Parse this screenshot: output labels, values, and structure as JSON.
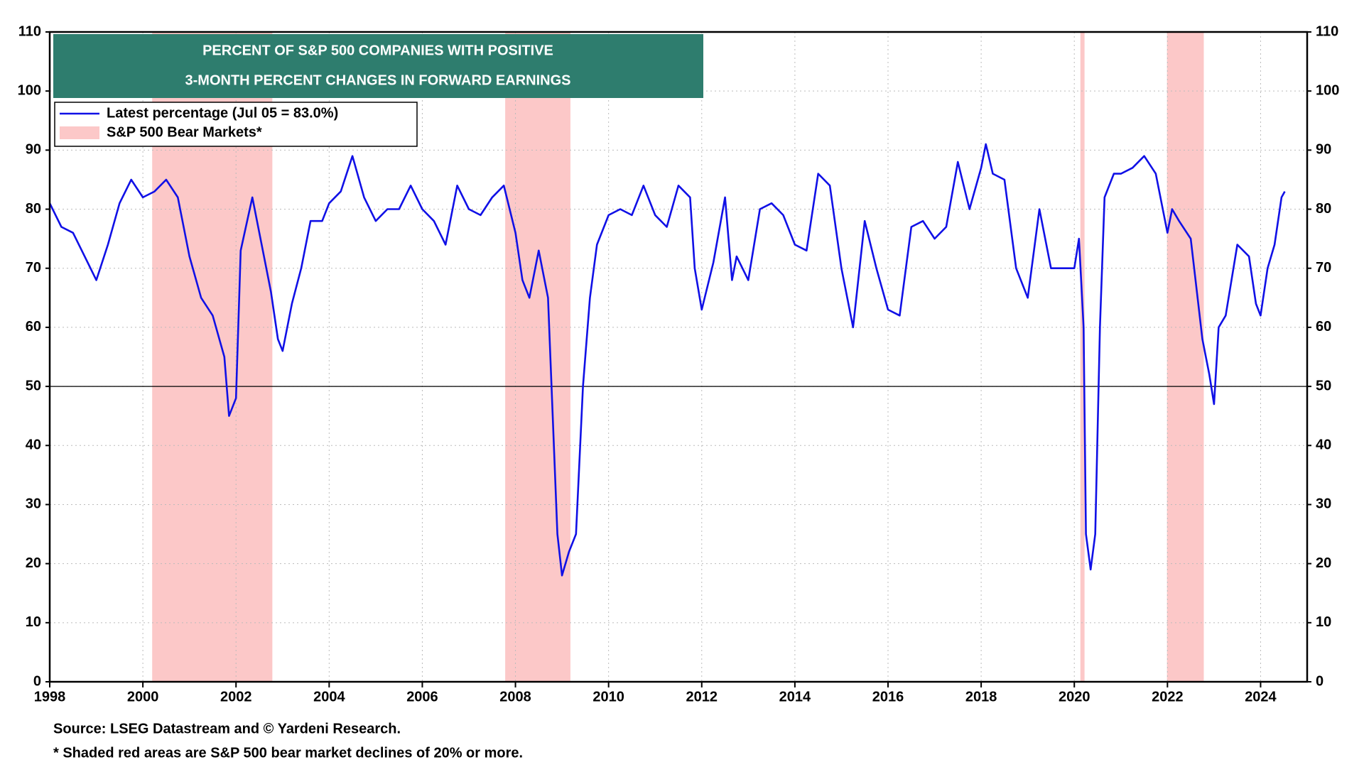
{
  "chart_data": {
    "type": "line",
    "title": [
      "PERCENT OF S&P 500 COMPANIES WITH POSITIVE",
      "3-MONTH PERCENT CHANGES IN FORWARD EARNINGS"
    ],
    "notes": [
      "Source: LSEG Datastream and © Yardeni Research.",
      "* Shaded red areas are S&P 500 bear market declines of 20% or more."
    ],
    "x": [
      1998.0,
      1998.25,
      1998.5,
      1998.75,
      1999.0,
      1999.25,
      1999.5,
      1999.75,
      2000.0,
      2000.25,
      2000.5,
      2000.75,
      2001.0,
      2001.25,
      2001.5,
      2001.75,
      2001.85,
      2002.0,
      2002.1,
      2002.35,
      2002.6,
      2002.75,
      2002.9,
      2003.0,
      2003.2,
      2003.4,
      2003.6,
      2003.85,
      2004.0,
      2004.25,
      2004.5,
      2004.75,
      2005.0,
      2005.25,
      2005.5,
      2005.75,
      2006.0,
      2006.25,
      2006.5,
      2006.75,
      2007.0,
      2007.25,
      2007.5,
      2007.75,
      2008.0,
      2008.15,
      2008.3,
      2008.5,
      2008.7,
      2008.8,
      2008.9,
      2009.0,
      2009.15,
      2009.3,
      2009.45,
      2009.6,
      2009.75,
      2010.0,
      2010.25,
      2010.5,
      2010.75,
      2011.0,
      2011.25,
      2011.5,
      2011.75,
      2011.85,
      2012.0,
      2012.25,
      2012.5,
      2012.65,
      2012.75,
      2013.0,
      2013.25,
      2013.5,
      2013.75,
      2014.0,
      2014.25,
      2014.5,
      2014.75,
      2015.0,
      2015.25,
      2015.5,
      2015.75,
      2016.0,
      2016.25,
      2016.5,
      2016.75,
      2017.0,
      2017.25,
      2017.5,
      2017.75,
      2018.0,
      2018.1,
      2018.25,
      2018.5,
      2018.75,
      2019.0,
      2019.25,
      2019.5,
      2019.75,
      2020.0,
      2020.1,
      2020.2,
      2020.25,
      2020.35,
      2020.45,
      2020.55,
      2020.65,
      2020.85,
      2021.0,
      2021.25,
      2021.5,
      2021.75,
      2022.0,
      2022.1,
      2022.25,
      2022.5,
      2022.75,
      2022.9,
      2023.0,
      2023.1,
      2023.25,
      2023.5,
      2023.75,
      2023.9,
      2024.0,
      2024.15,
      2024.3,
      2024.45,
      2024.52
    ],
    "series": [
      {
        "name": "Latest percentage (Jul 05 = 83.0%)",
        "color": "#1010e6",
        "values": [
          81,
          77,
          76,
          72,
          68,
          74,
          81,
          85,
          82,
          83,
          85,
          82,
          72,
          65,
          62,
          55,
          45,
          48,
          73,
          82,
          72,
          66,
          58,
          56,
          64,
          70,
          78,
          78,
          81,
          83,
          89,
          82,
          78,
          80,
          80,
          84,
          80,
          78,
          74,
          84,
          80,
          79,
          82,
          84,
          76,
          68,
          65,
          73,
          65,
          45,
          25,
          18,
          22,
          25,
          50,
          65,
          74,
          79,
          80,
          79,
          84,
          79,
          77,
          84,
          82,
          70,
          63,
          71,
          82,
          68,
          72,
          68,
          80,
          81,
          79,
          74,
          73,
          86,
          84,
          70,
          60,
          78,
          70,
          63,
          62,
          77,
          78,
          75,
          77,
          88,
          80,
          87,
          91,
          86,
          85,
          70,
          65,
          80,
          70,
          70,
          70,
          75,
          60,
          25,
          19,
          25,
          60,
          82,
          86,
          86,
          87,
          89,
          86,
          76,
          80,
          78,
          75,
          58,
          52,
          47,
          60,
          62,
          74,
          72,
          64,
          62,
          70,
          74,
          82,
          83
        ]
      }
    ],
    "bear_markets": {
      "name": "S&P 500 Bear Markets*",
      "color": "#fcc8c8",
      "ranges": [
        [
          2000.2,
          2002.78
        ],
        [
          2007.78,
          2009.18
        ],
        [
          2020.13,
          2020.22
        ],
        [
          2021.99,
          2022.78
        ]
      ]
    },
    "reference_line": 50,
    "xlim": [
      1998,
      2025
    ],
    "xticks": [
      1998,
      2000,
      2002,
      2004,
      2006,
      2008,
      2010,
      2012,
      2014,
      2016,
      2018,
      2020,
      2022,
      2024
    ],
    "ylim": [
      0,
      110
    ],
    "yticks": [
      0,
      10,
      20,
      30,
      40,
      50,
      60,
      70,
      80,
      90,
      100,
      110
    ],
    "y2lim": [
      0,
      110
    ],
    "y2ticks": [
      0,
      10,
      20,
      30,
      40,
      50,
      60,
      70,
      80,
      90,
      100,
      110
    ],
    "grid": true
  }
}
